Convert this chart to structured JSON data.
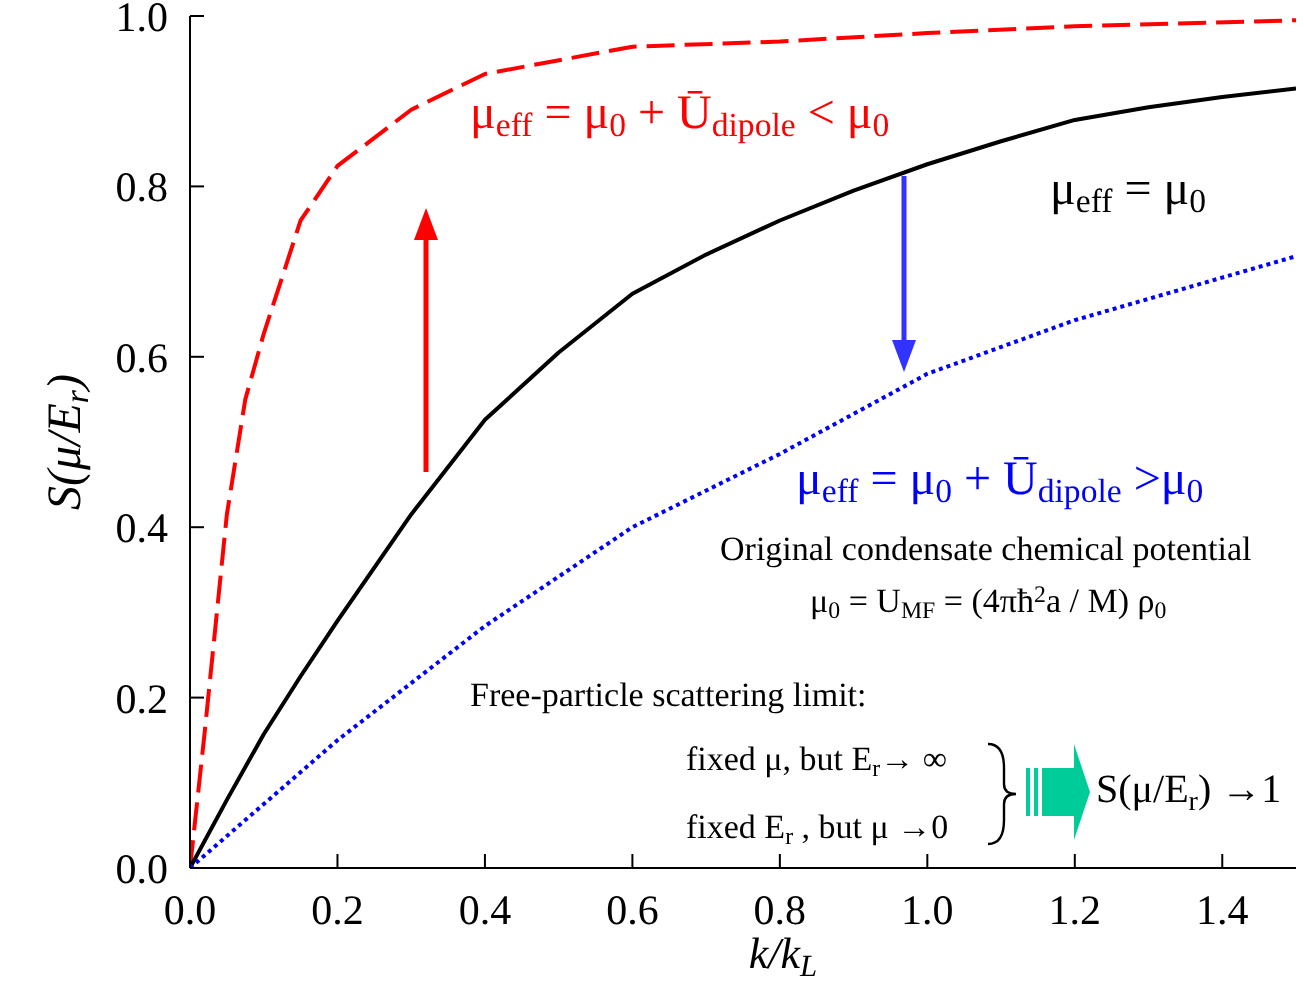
{
  "chart_data": {
    "type": "line",
    "xlabel": "k/k$_{L}$",
    "ylabel": "S(μ/E$_{r}$)",
    "xlim": [
      0,
      1.5
    ],
    "ylim": [
      0,
      1
    ],
    "xticks": [
      {
        "value": 0,
        "label": "0.0"
      },
      0.2,
      0.4,
      0.6,
      0.8,
      {
        "value": 1,
        "label": "1.0"
      },
      1.2,
      1.4
    ],
    "yticks": [
      {
        "value": 0,
        "label": "0.0"
      },
      0.2,
      0.4,
      0.6,
      0.8,
      {
        "value": 1,
        "label": "1.0"
      }
    ],
    "marker": "none",
    "series": [
      {
        "color": "#ff0000",
        "line_style": "dashed",
        "x": [
          0,
          0.01,
          0.02,
          0.05,
          0.075,
          0.1,
          0.15,
          0.2,
          0.3,
          0.4,
          0.6,
          0.8,
          1.0,
          1.2,
          1.5
        ],
        "values": [
          0,
          0.08,
          0.16,
          0.415,
          0.55,
          0.627,
          0.76,
          0.824,
          0.89,
          0.932,
          0.964,
          0.97,
          0.98,
          0.988,
          0.995
        ]
      },
      {
        "color": "#000000",
        "line_style": "solid",
        "x": [
          0,
          0.05,
          0.1,
          0.15,
          0.2,
          0.3,
          0.4,
          0.5,
          0.6,
          0.7,
          0.8,
          0.9,
          1.0,
          1.1,
          1.2,
          1.3,
          1.4,
          1.5
        ],
        "values": [
          0,
          0.08,
          0.157,
          0.225,
          0.29,
          0.415,
          0.526,
          0.605,
          0.674,
          0.72,
          0.76,
          0.795,
          0.826,
          0.853,
          0.878,
          0.893,
          0.905,
          0.915
        ]
      },
      {
        "color": "#0000ff",
        "line_style": "dotted",
        "x": [
          0,
          0.1,
          0.2,
          0.4,
          0.6,
          0.8,
          1.0,
          1.2,
          1.5
        ],
        "values": [
          0,
          0.075,
          0.15,
          0.284,
          0.4,
          0.486,
          0.58,
          0.643,
          0.718
        ]
      }
    ],
    "annotations": [
      "μ$_{eff}$ = μ$_{0}$ + Ū$_{dipole}$ < μ$_{0}$",
      "μ$_{eff}$ = μ$_{0}$",
      "μ$_{eff}$ = μ$_{0}$ + Ū$_{dipole}$ >μ$_{0}$",
      "Original condensate chemical potential",
      "μ$_{0}$ = U$_{MF}$ = (4πħ$^{2}$a / M) ρ$_{0}$",
      "Free-particle scattering limit:",
      "fixed μ, but E$_{r}$→ ∞",
      "fixed E$_{r}$ , but μ →0",
      "S(μ/E$_{r}$) →1"
    ]
  }
}
